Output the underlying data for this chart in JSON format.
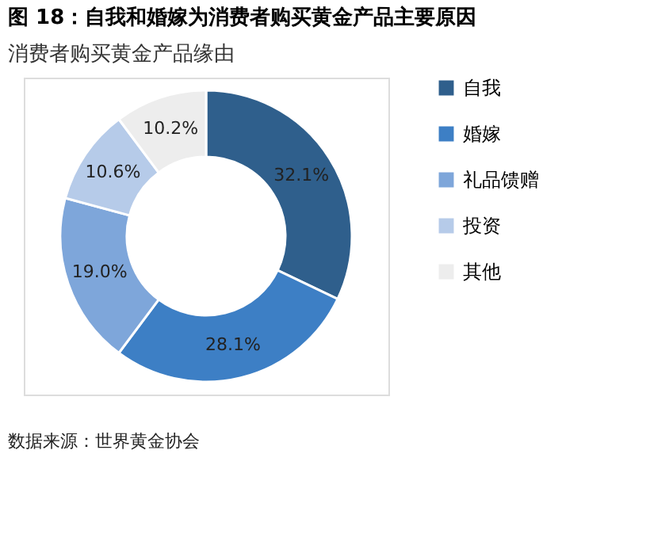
{
  "chart_data": {
    "type": "donut",
    "title": "图 18：自我和婚嫁为消费者购买黄金产品主要原因",
    "subtitle": "消费者购买黄金产品缘由",
    "categories": [
      "自我",
      "婚嫁",
      "礼品馈赠",
      "投资",
      "其他"
    ],
    "values": [
      32.1,
      28.1,
      19.0,
      10.6,
      10.2
    ],
    "value_labels": [
      "32.1%",
      "28.1%",
      "19.0%",
      "10.6%",
      "10.2%"
    ],
    "colors": [
      "#2f5f8c",
      "#3d7fc5",
      "#7ea6da",
      "#b6cbe9",
      "#ededed"
    ],
    "legend": "right",
    "annotations": [
      "数据来源：世界黄金协会"
    ]
  }
}
